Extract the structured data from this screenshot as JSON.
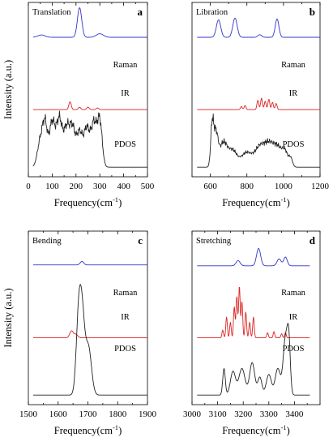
{
  "colors": {
    "raman": "#3333cc",
    "ir": "#dd2222",
    "pdos": "#222222"
  },
  "chart_data": [
    {
      "type": "line",
      "panel_letter": "a",
      "title": "Translation",
      "xlabel": "Frequency(cm",
      "xlabel_sup": "-1",
      "xlabel_close": ")",
      "ylabel": "Intensity (a.u.)",
      "xlim": [
        0,
        500
      ],
      "xticks": [
        0,
        100,
        200,
        300,
        400,
        500
      ],
      "x_end": 500,
      "series": [
        {
          "name": "Raman",
          "color_key": "raman",
          "baseline": 0.8,
          "scale": 0.17,
          "peaks": [
            [
              55,
              0.08,
              15
            ],
            [
              215,
              1.0,
              9
            ],
            [
              300,
              0.12,
              15
            ]
          ]
        },
        {
          "name": "IR",
          "color_key": "ir",
          "baseline": 0.385,
          "scale": 0.05,
          "peaks": [
            [
              175,
              0.9,
              5
            ],
            [
              215,
              0.28,
              5
            ],
            [
              250,
              0.3,
              5
            ],
            [
              290,
              0.2,
              5
            ]
          ]
        },
        {
          "name": "PDOS",
          "color_key": "pdos",
          "baseline": 0.055,
          "scale": 0.27,
          "noisy": true,
          "peaks": [
            [
              50,
              0.55,
              12
            ],
            [
              70,
              0.85,
              10
            ],
            [
              100,
              0.95,
              12
            ],
            [
              130,
              1.0,
              12
            ],
            [
              160,
              0.78,
              12
            ],
            [
              185,
              0.8,
              12
            ],
            [
              215,
              0.72,
              12
            ],
            [
              245,
              0.8,
              12
            ],
            [
              275,
              0.92,
              12
            ],
            [
              300,
              0.95,
              10
            ]
          ]
        }
      ]
    },
    {
      "type": "line",
      "panel_letter": "b",
      "title": "Libration",
      "xlabel": "Frequency(cm",
      "xlabel_sup": "-1",
      "xlabel_close": ")",
      "ylabel": "",
      "xlim": [
        500,
        1200
      ],
      "xticks": [
        600,
        800,
        1000,
        1200
      ],
      "x_end": 1200,
      "series": [
        {
          "name": "Raman",
          "color_key": "raman",
          "baseline": 0.8,
          "scale": 0.1,
          "peaks": [
            [
              645,
              1.0,
              12
            ],
            [
              735,
              1.1,
              12
            ],
            [
              870,
              0.15,
              10
            ],
            [
              965,
              1.05,
              10
            ]
          ]
        },
        {
          "name": "IR",
          "color_key": "ir",
          "baseline": 0.385,
          "scale": 0.06,
          "peaks": [
            [
              770,
              0.3,
              5
            ],
            [
              790,
              0.4,
              5
            ],
            [
              860,
              0.9,
              5
            ],
            [
              880,
              1.1,
              5
            ],
            [
              900,
              0.8,
              5
            ],
            [
              920,
              1.0,
              5
            ],
            [
              940,
              0.7,
              5
            ],
            [
              960,
              0.6,
              5
            ]
          ]
        },
        {
          "name": "PDOS",
          "color_key": "pdos",
          "baseline": 0.055,
          "scale": 0.24,
          "noisy": true,
          "peaks": [
            [
              610,
              0.95,
              8
            ],
            [
              630,
              0.8,
              12
            ],
            [
              670,
              0.55,
              20
            ],
            [
              720,
              0.4,
              25
            ],
            [
              800,
              0.35,
              30
            ],
            [
              870,
              0.45,
              25
            ],
            [
              920,
              0.5,
              25
            ],
            [
              970,
              0.45,
              25
            ],
            [
              1010,
              0.3,
              15
            ],
            [
              1040,
              0.2,
              10
            ]
          ]
        }
      ]
    },
    {
      "type": "line",
      "panel_letter": "c",
      "title": "Bending",
      "xlabel": "Frequency(cm",
      "xlabel_sup": "-1",
      "xlabel_close": ")",
      "ylabel": "Intensity (a.u.)",
      "xlim": [
        1500,
        1900
      ],
      "xticks": [
        1500,
        1600,
        1700,
        1800,
        1900
      ],
      "x_end": 1900,
      "series": [
        {
          "name": "Raman",
          "color_key": "raman",
          "baseline": 0.805,
          "scale": 0.02,
          "peaks": [
            [
              1680,
              1.0,
              6
            ]
          ]
        },
        {
          "name": "IR",
          "color_key": "ir",
          "baseline": 0.385,
          "scale": 0.04,
          "peaks": [
            [
              1645,
              1.0,
              6
            ],
            [
              1660,
              0.5,
              6
            ]
          ]
        },
        {
          "name": "PDOS",
          "color_key": "pdos",
          "baseline": 0.055,
          "scale": 0.45,
          "peaks": [
            [
              1668,
              0.8,
              8
            ],
            [
              1680,
              1.0,
              9
            ],
            [
              1702,
              0.6,
              10
            ]
          ]
        }
      ]
    },
    {
      "type": "line",
      "panel_letter": "d",
      "title": "Stretching",
      "xlabel": "Frequency(cm",
      "xlabel_sup": "-1",
      "xlabel_close": ")",
      "ylabel": "",
      "xlim": [
        3000,
        3500
      ],
      "xticks": [
        3000,
        3100,
        3200,
        3300,
        3400
      ],
      "x_end": 3460,
      "series": [
        {
          "name": "Raman",
          "color_key": "raman",
          "baseline": 0.8,
          "scale": 0.1,
          "peaks": [
            [
              3180,
              0.3,
              8
            ],
            [
              3260,
              1.0,
              8
            ],
            [
              3340,
              0.4,
              8
            ],
            [
              3365,
              0.5,
              7
            ]
          ]
        },
        {
          "name": "IR",
          "color_key": "ir",
          "baseline": 0.385,
          "scale": 0.3,
          "peaks": [
            [
              3120,
              0.15,
              3
            ],
            [
              3135,
              0.4,
              3
            ],
            [
              3150,
              0.3,
              3
            ],
            [
              3165,
              0.6,
              3
            ],
            [
              3175,
              0.8,
              3
            ],
            [
              3185,
              1.0,
              3
            ],
            [
              3195,
              0.7,
              3
            ],
            [
              3210,
              0.5,
              3
            ],
            [
              3225,
              0.3,
              3
            ],
            [
              3240,
              0.4,
              3
            ],
            [
              3295,
              0.1,
              3
            ],
            [
              3320,
              0.12,
              3
            ],
            [
              3350,
              0.08,
              3
            ],
            [
              3365,
              0.1,
              3
            ]
          ]
        },
        {
          "name": "PDOS",
          "color_key": "pdos",
          "baseline": 0.055,
          "scale": 0.34,
          "peaks": [
            [
              3125,
              0.45,
              5
            ],
            [
              3160,
              0.4,
              10
            ],
            [
              3195,
              0.45,
              12
            ],
            [
              3235,
              0.55,
              10
            ],
            [
              3265,
              0.3,
              8
            ],
            [
              3300,
              0.35,
              10
            ],
            [
              3335,
              0.45,
              10
            ],
            [
              3365,
              0.95,
              9
            ],
            [
              3378,
              0.8,
              6
            ]
          ]
        }
      ]
    }
  ]
}
